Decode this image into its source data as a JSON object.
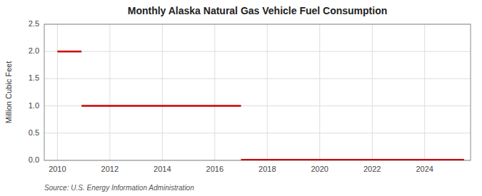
{
  "chart_data": {
    "type": "segments",
    "title": "Monthly Alaska Natural Gas Vehicle Fuel Consumption",
    "ylabel": "Million Cubic Feet",
    "source": "Source: U.S. Energy Information Administration",
    "x_start": [
      2010.0,
      2010.92,
      2017.0
    ],
    "x_end": [
      2010.92,
      2017.0,
      2025.5
    ],
    "values": [
      2.0,
      1.0,
      0.01
    ],
    "color": "#cc0000",
    "xlim": [
      2009.5,
      2025.75
    ],
    "ylim": [
      0.0,
      2.5
    ],
    "xticks": [
      2010,
      2012,
      2014,
      2016,
      2018,
      2020,
      2022,
      2024
    ],
    "yticks": [
      {
        "value": 0.0,
        "label": "0.0"
      },
      0.5,
      {
        "value": 1.0,
        "label": "1.0"
      },
      1.5,
      {
        "value": 2.0,
        "label": "2.0"
      },
      2.5
    ],
    "grid": true
  }
}
